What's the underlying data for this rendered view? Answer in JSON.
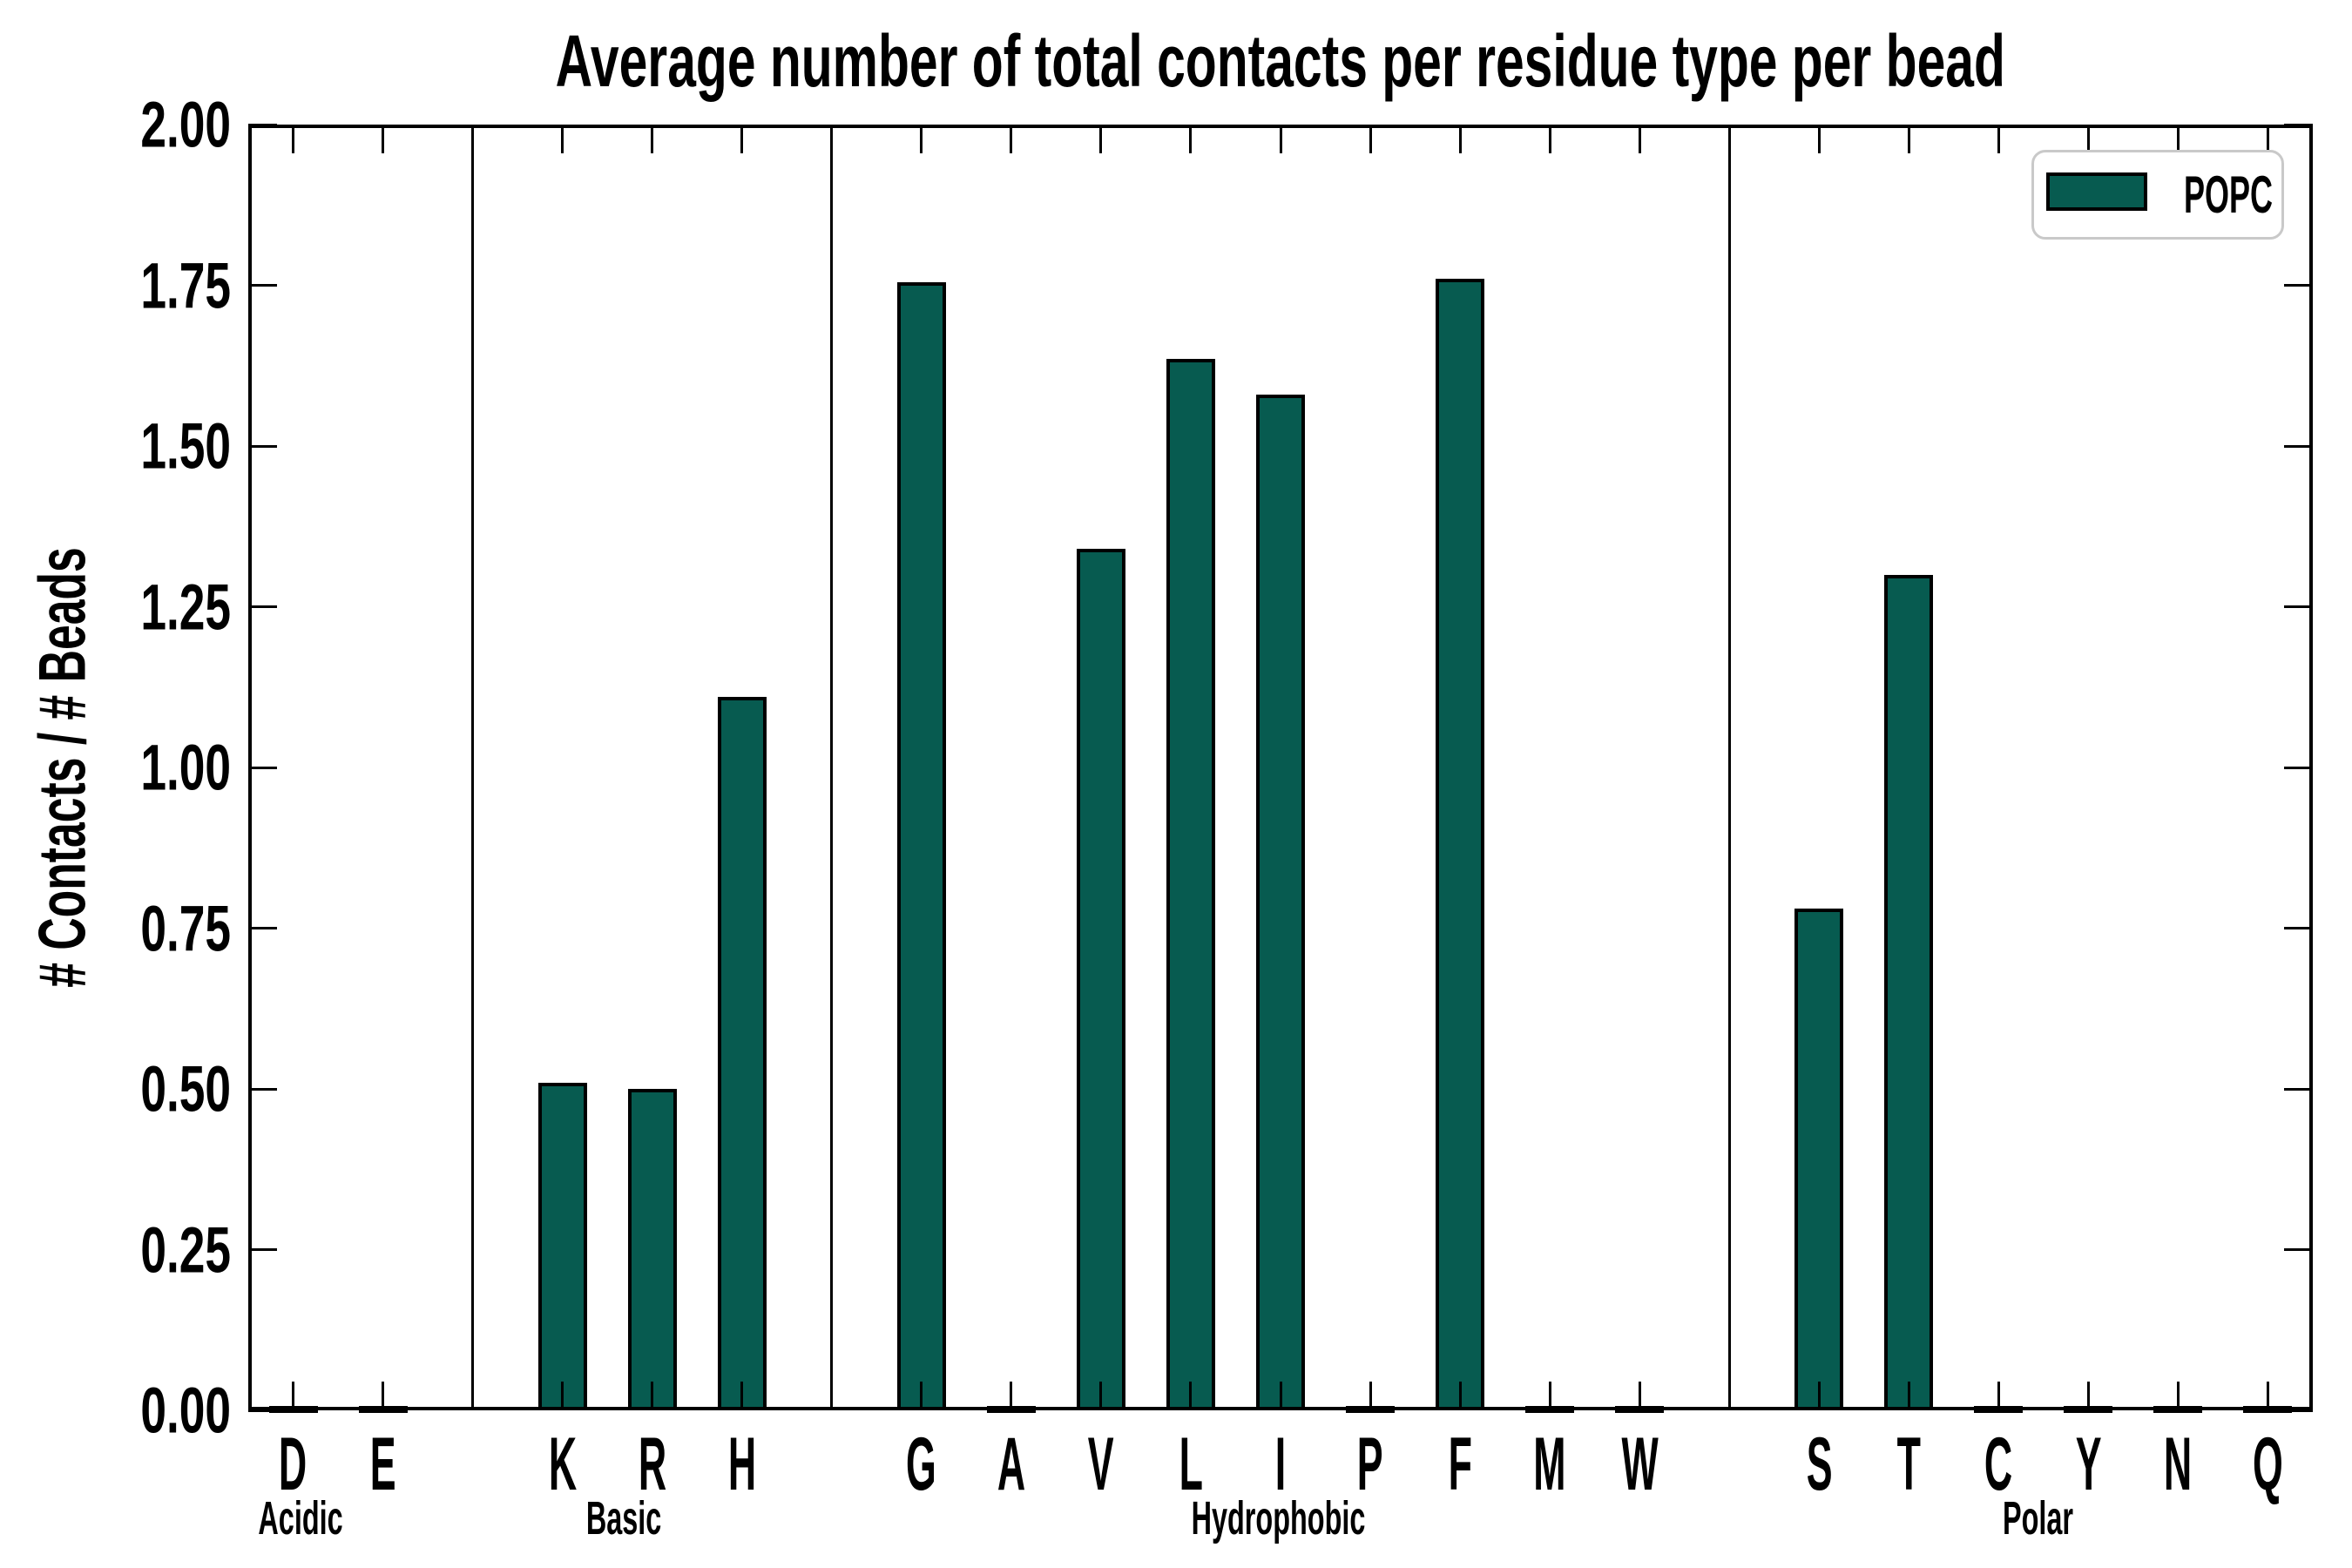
{
  "chart_data": {
    "type": "bar",
    "title": "Average number of total contacts per residue type per bead",
    "ylabel": "# Contacts / # Beads",
    "xlabel": "",
    "ylim": [
      0,
      2.0
    ],
    "ytick_interval": 0.25,
    "ytick_labels": [
      "0.00",
      "0.25",
      "0.50",
      "0.75",
      "1.00",
      "1.25",
      "1.50",
      "1.75",
      "2.00"
    ],
    "grid": false,
    "legend": {
      "position": "upper right",
      "entries": [
        {
          "label": "POPC",
          "color": "#075b50"
        }
      ]
    },
    "bar_edge_color": "#000000",
    "bar_fill_color": "#075b50",
    "group_separator_lines": true,
    "groups": [
      {
        "name": "Acidic",
        "categories": [
          "D",
          "E"
        ],
        "values": [
          0.005,
          0.005
        ]
      },
      {
        "name": "Basic",
        "categories": [
          "K",
          "R",
          "H"
        ],
        "values": [
          0.51,
          0.5,
          1.11
        ]
      },
      {
        "name": "Hydrophobic",
        "categories": [
          "G",
          "A",
          "V",
          "L",
          "I",
          "P",
          "F",
          "M",
          "W"
        ],
        "values": [
          1.755,
          0.005,
          1.34,
          1.635,
          1.58,
          0.005,
          1.76,
          0.005,
          0.005
        ]
      },
      {
        "name": "Polar",
        "categories": [
          "S",
          "T",
          "C",
          "Y",
          "N",
          "Q"
        ],
        "values": [
          0.78,
          1.3,
          0.005,
          0.005,
          0.005,
          0.005
        ]
      }
    ]
  }
}
